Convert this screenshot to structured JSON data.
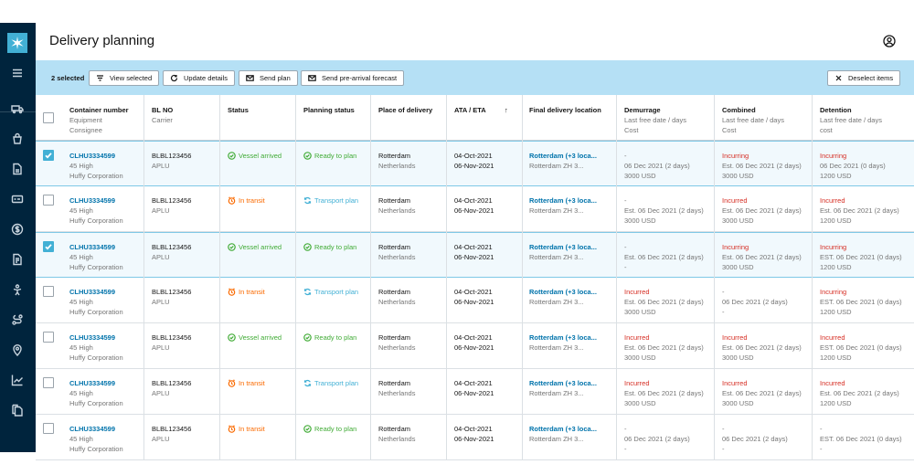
{
  "header": {
    "title": "Delivery planning"
  },
  "actionbar": {
    "selected_count": "2 selected",
    "view_selected": "View selected",
    "update_details": "Update details",
    "send_plan": "Send plan",
    "send_forecast": "Send pre-arrival forecast",
    "deselect": "Deselect items"
  },
  "columns": {
    "container": {
      "title": "Container number",
      "sub1": "Equipment",
      "sub2": "Consignee"
    },
    "bl": {
      "title": "BL NO",
      "sub1": "Carrier"
    },
    "status": {
      "title": "Status"
    },
    "planning": {
      "title": "Planning status"
    },
    "place": {
      "title": "Place of delivery"
    },
    "ata": {
      "title": "ATA / ETA",
      "sort": "↑"
    },
    "final": {
      "title": "Final delivery location"
    },
    "demurrage": {
      "title": "Demurrage",
      "sub1": "Last free date / days",
      "sub2": "Cost"
    },
    "combined": {
      "title": "Combined",
      "sub1": "Last free date / days",
      "sub2": "Cost"
    },
    "detention": {
      "title": "Detention",
      "sub1": "Last free date / days",
      "sub2": "cost"
    }
  },
  "colors": {
    "accent": "#42b0d5",
    "sidebar": "#00243d",
    "actionbar": "#b5e0f5",
    "red": "#d62d23",
    "green": "#40ab35",
    "orange": "#fa6a00"
  },
  "rows": [
    {
      "checked": true,
      "container": "CLHU3334599",
      "equipment": "45 High",
      "consignee": "Huffy Corporation",
      "bl": "BLBL123456",
      "carrier": "APLU",
      "status": "Vessel arrived",
      "status_kind": "green",
      "planning": "Ready to plan",
      "planning_kind": "green",
      "place": "Rotterdam",
      "country": "Netherlands",
      "ata": "04-Oct-2021",
      "eta": "06-Nov-2021",
      "final": "Rotterdam (+3 loca...",
      "final_sub": "Rotterdam ZH 3...",
      "dem1": "-",
      "dem2": "06 Dec 2021 (2 days)",
      "dem3": "3000 USD",
      "dem_red": false,
      "com1": "Incurring",
      "com2": "Est. 06 Dec 2021 (2 days)",
      "com3": "3000 USD",
      "com_red": true,
      "det1": "Incurring",
      "det2": "06 Dec 2021 (0 days)",
      "det3": "1200 USD",
      "det_red": true
    },
    {
      "checked": false,
      "container": "CLHU3334599",
      "equipment": "45 High",
      "consignee": "Huffy Corporation",
      "bl": "BLBL123456",
      "carrier": "APLU",
      "status": "In transit",
      "status_kind": "orange",
      "planning": "Transport plan",
      "planning_kind": "blue",
      "place": "Rotterdam",
      "country": "Netherlands",
      "ata": "04-Oct-2021",
      "eta": "06-Nov-2021",
      "final": "Rotterdam (+3 loca...",
      "final_sub": "Rotterdam ZH 3...",
      "dem1": "-",
      "dem2": "Est. 06 Dec 2021 (2 days)",
      "dem3": "3000 USD",
      "dem_red": false,
      "com1": "Incurred",
      "com2": "Est. 06 Dec 2021 (2 days)",
      "com3": "3000 USD",
      "com_red": true,
      "det1": "Incurred",
      "det2": "Est. 06 Dec 2021 (2 days)",
      "det3": "1200 USD",
      "det_red": true
    },
    {
      "checked": true,
      "container": "CLHU3334599",
      "equipment": "45 High",
      "consignee": "Huffy Corporation",
      "bl": "BLBL123456",
      "carrier": "APLU",
      "status": "Vessel arrived",
      "status_kind": "green",
      "planning": "Ready to plan",
      "planning_kind": "green",
      "place": "Rotterdam",
      "country": "Netherlands",
      "ata": "04-Oct-2021",
      "eta": "06-Nov-2021",
      "final": "Rotterdam (+3 loca...",
      "final_sub": "Rotterdam ZH 3...",
      "dem1": "-",
      "dem2": "Est. 06 Dec 2021 (2 days)",
      "dem3": "-",
      "dem_red": false,
      "com1": "Incurring",
      "com2": "Est. 06 Dec 2021 (2 days)",
      "com3": "3000 USD",
      "com_red": true,
      "det1": "Incurring",
      "det2": "EST. 06 Dec 2021 (0 days)",
      "det3": "1200 USD",
      "det_red": true
    },
    {
      "checked": false,
      "container": "CLHU3334599",
      "equipment": "45 High",
      "consignee": "Huffy Corporation",
      "bl": "BLBL123456",
      "carrier": "APLU",
      "status": "In transit",
      "status_kind": "orange",
      "planning": "Transport plan",
      "planning_kind": "blue",
      "place": "Rotterdam",
      "country": "Netherlands",
      "ata": "04-Oct-2021",
      "eta": "06-Nov-2021",
      "final": "Rotterdam (+3 loca...",
      "final_sub": "Rotterdam ZH 3...",
      "dem1": "Incurred",
      "dem2": "Est. 06 Dec 2021 (2 days)",
      "dem3": "3000 USD",
      "dem_red": true,
      "com1": "-",
      "com2": "06 Dec 2021 (2 days)",
      "com3": "-",
      "com_red": false,
      "det1": "Incurring",
      "det2": "EST. 06 Dec 2021 (0 days)",
      "det3": "1200 USD",
      "det_red": true
    },
    {
      "checked": false,
      "container": "CLHU3334599",
      "equipment": "45 High",
      "consignee": "Huffy Corporation",
      "bl": "BLBL123456",
      "carrier": "APLU",
      "status": "Vessel arrived",
      "status_kind": "green",
      "planning": "Ready to plan",
      "planning_kind": "green",
      "place": "Rotterdam",
      "country": "Netherlands",
      "ata": "04-Oct-2021",
      "eta": "06-Nov-2021",
      "final": "Rotterdam (+3 loca...",
      "final_sub": "Rotterdam ZH 3...",
      "dem1": "Incurred",
      "dem2": "Est. 06 Dec 2021 (2 days)",
      "dem3": "3000 USD",
      "dem_red": true,
      "com1": "Incurred",
      "com2": "Est. 06 Dec 2021 (2 days)",
      "com3": "3000 USD",
      "com_red": true,
      "det1": "Incurred",
      "det2": "EST. 06 Dec 2021 (0 days)",
      "det3": "1200 USD",
      "det_red": true
    },
    {
      "checked": false,
      "container": "CLHU3334599",
      "equipment": "45 High",
      "consignee": "Huffy Corporation",
      "bl": "BLBL123456",
      "carrier": "APLU",
      "status": "In transit",
      "status_kind": "orange",
      "planning": "Transport plan",
      "planning_kind": "blue",
      "place": "Rotterdam",
      "country": "Netherlands",
      "ata": "04-Oct-2021",
      "eta": "06-Nov-2021",
      "final": "Rotterdam (+3 loca...",
      "final_sub": "Rotterdam ZH 3...",
      "dem1": "Incurred",
      "dem2": "Est. 06 Dec 2021 (2 days)",
      "dem3": "3000 USD",
      "dem_red": true,
      "com1": "Incurred",
      "com2": "Est. 06 Dec 2021 (2 days)",
      "com3": "3000 USD",
      "com_red": true,
      "det1": "Incurred",
      "det2": "Est. 06 Dec 2021 (2 days)",
      "det3": "1200 USD",
      "det_red": true
    },
    {
      "checked": false,
      "container": "CLHU3334599",
      "equipment": "45 High",
      "consignee": "Huffy Corporation",
      "bl": "BLBL123456",
      "carrier": "APLU",
      "status": "In transit",
      "status_kind": "orange",
      "planning": "Ready to plan",
      "planning_kind": "green",
      "place": "Rotterdam",
      "country": "Netherlands",
      "ata": "04-Oct-2021",
      "eta": "06-Nov-2021",
      "final": "Rotterdam (+3 loca...",
      "final_sub": "Rotterdam ZH 3...",
      "dem1": "-",
      "dem2": "06 Dec 2021 (2 days)",
      "dem3": "-",
      "dem_red": false,
      "com1": "-",
      "com2": "06 Dec 2021 (2 days)",
      "com3": "-",
      "com_red": false,
      "det1": "-",
      "det2": "EST. 06 Dec 2021 (0 days)",
      "det3": "-",
      "det_red": false
    }
  ]
}
